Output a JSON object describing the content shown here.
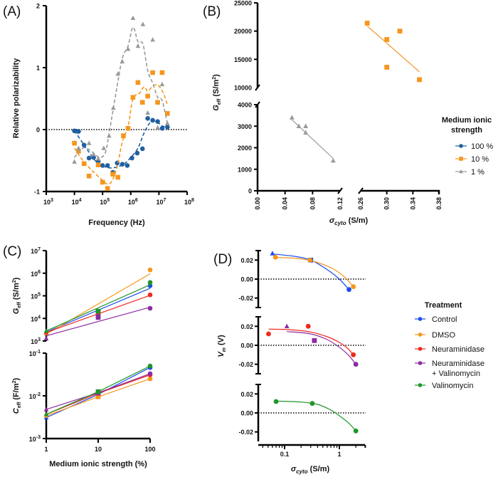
{
  "chart_data": [
    {
      "id": "A",
      "panel_label": "(A)",
      "type": "scatter",
      "title": "",
      "xlabel": "Frequency (Hz)",
      "ylabel": "Relative polarizability",
      "xscale": "log",
      "xlim": [
        1000,
        100000000
      ],
      "ylim": [
        -1,
        2
      ],
      "xticks": [
        "10^3",
        "10^4",
        "10^5",
        "10^6",
        "10^7",
        "10^8"
      ],
      "yticks": [
        "-1",
        "0",
        "1",
        "2"
      ],
      "reference_line": {
        "y": 0,
        "style": "dotted"
      },
      "series": [
        {
          "name": "100 %",
          "color": "#1f5fa0",
          "marker": "circle",
          "x": [
            10000,
            14000,
            22000,
            33000,
            48000,
            70000,
            100000,
            150000,
            230000,
            330000,
            500000,
            750000,
            1100000,
            1700000,
            2600000,
            4000000,
            6000000,
            9000000,
            13000000,
            20000000
          ],
          "y": [
            -0.02,
            -0.03,
            -0.25,
            -0.46,
            -0.45,
            -0.52,
            -0.58,
            -0.58,
            -0.69,
            -0.54,
            -0.56,
            -0.58,
            -0.46,
            -0.38,
            -0.31,
            0.18,
            0.15,
            0.13,
            0.02,
            0.04
          ],
          "fit_x": [
            10000,
            20000,
            40000,
            70000,
            120000,
            200000,
            350000,
            600000,
            1000000,
            1800000,
            3000000,
            5000000,
            8000000,
            13000000,
            20000000
          ],
          "fit_y": [
            -0.02,
            -0.22,
            -0.42,
            -0.55,
            -0.6,
            -0.62,
            -0.6,
            -0.55,
            -0.45,
            -0.3,
            -0.05,
            0.12,
            0.13,
            0.06,
            0.04
          ]
        },
        {
          "name": "10 %",
          "color": "#f5961e",
          "marker": "square",
          "x": [
            10000,
            14000,
            22000,
            33000,
            70000,
            100000,
            150000,
            230000,
            350000,
            550000,
            800000,
            1200000,
            1800000,
            2600000,
            4000000,
            6000000,
            9000000,
            13000000,
            20000000
          ],
          "y": [
            -0.22,
            -0.35,
            -0.55,
            -0.75,
            -0.57,
            -0.85,
            -0.95,
            -0.72,
            -0.77,
            -0.1,
            0.02,
            0.52,
            0.76,
            0.44,
            0.54,
            0.92,
            0.44,
            0.92,
            0.26
          ],
          "fit_x": [
            10000,
            20000,
            40000,
            80000,
            150000,
            220000,
            330000,
            500000,
            800000,
            1200000,
            2000000,
            3000000,
            4000000,
            6000000,
            9000000,
            14000000,
            20000000
          ],
          "fit_y": [
            -0.3,
            -0.5,
            -0.65,
            -0.78,
            -0.88,
            -0.82,
            -0.6,
            -0.2,
            0.05,
            0.5,
            0.58,
            0.69,
            0.62,
            0.7,
            0.72,
            0.6,
            0.4
          ]
        },
        {
          "name": "1 %",
          "color": "#999999",
          "marker": "triangle",
          "x": [
            10000,
            14000,
            33000,
            48000,
            70000,
            110000,
            170000,
            240000,
            350000,
            500000,
            800000,
            1200000,
            1800000,
            2700000,
            4000000,
            6000000,
            9000000,
            13000000,
            20000000
          ],
          "y": [
            -0.52,
            -0.3,
            -0.22,
            -0.4,
            -0.47,
            -0.3,
            -0.1,
            0.35,
            0.9,
            1.1,
            1.3,
            1.8,
            1.35,
            1.7,
            0.27,
            1.45,
            0.03,
            0.73,
            0.1
          ],
          "fit_x": [
            10000,
            20000,
            35000,
            60000,
            90000,
            130000,
            180000,
            300000,
            500000,
            800000,
            1200000,
            1800000,
            2700000,
            4000000,
            6000000,
            9000000,
            13000000,
            20000000
          ],
          "fit_y": [
            -0.45,
            -0.3,
            -0.33,
            -0.42,
            -0.45,
            -0.35,
            0.0,
            0.6,
            1.15,
            1.35,
            1.65,
            1.42,
            1.38,
            0.95,
            0.75,
            0.52,
            0.47,
            0.1
          ]
        }
      ]
    },
    {
      "id": "B",
      "panel_label": "(B)",
      "type": "scatter",
      "title": "",
      "xlabel": "σcyto (S/m)",
      "xlabel_main": "σ",
      "xlabel_sub": "cyto",
      "xlabel_unit": " (S/m)",
      "ylabel": "Geff (S/m2)",
      "ylabel_main": "G",
      "ylabel_sub": "eff",
      "ylabel_unit": " (S/m",
      "ylabel_sup": "2",
      "ylabel_close": ")",
      "x_segments": [
        [
          0.0,
          0.12
        ],
        [
          0.26,
          0.38
        ]
      ],
      "y_segments": [
        [
          0,
          4000
        ],
        [
          10000,
          25000
        ]
      ],
      "xticks_seg1": [
        "0.00",
        "0.04",
        "0.08",
        "0.12"
      ],
      "xticks_seg2": [
        "0.26",
        "0.30",
        "0.34",
        "0.38"
      ],
      "yticks_seg1": [
        "0",
        "1000",
        "2000",
        "3000",
        "4000"
      ],
      "yticks_seg2": [
        "10000",
        "15000",
        "20000",
        "25000"
      ],
      "legend": {
        "title_line1": "Medium ionic",
        "title_line2": "strength",
        "position": "right"
      },
      "series": [
        {
          "name": "100 %",
          "color": "#1f5fa0",
          "marker": "circle",
          "x": [],
          "y": []
        },
        {
          "name": "10 %",
          "color": "#f5961e",
          "marker": "square",
          "x": [
            0.27,
            0.3,
            0.32,
            0.3,
            0.35
          ],
          "y": [
            21400,
            18500,
            20000,
            13600,
            11400
          ],
          "fit": {
            "x": [
              0.27,
              0.35
            ],
            "y": [
              20900,
              12800
            ]
          }
        },
        {
          "name": "1 %",
          "color": "#999999",
          "marker": "triangle",
          "x": [
            0.05,
            0.06,
            0.07,
            0.07,
            0.11
          ],
          "y": [
            3400,
            3000,
            3000,
            2700,
            1400
          ],
          "fit": {
            "x": [
              0.05,
              0.11
            ],
            "y": [
              3300,
              1500
            ]
          }
        }
      ]
    },
    {
      "id": "C",
      "panel_label": "(C)",
      "type": "scatter",
      "title": "",
      "xlabel": "Medium ionic strength (%)",
      "xscale": "log",
      "xticks": [
        "1",
        "10",
        "100"
      ],
      "x": [
        1,
        10,
        100
      ],
      "subplots": [
        {
          "id": "C-top",
          "ylabel_main": "G",
          "ylabel_sub": "eff",
          "ylabel_unit": " (S/m",
          "ylabel_sup": "2",
          "ylabel_close": ")",
          "yscale": "log",
          "ylim": [
            1000,
            10000000
          ],
          "yticks": [
            {
              "base": "10",
              "exp": "3"
            },
            {
              "base": "10",
              "exp": "4"
            },
            {
              "base": "10",
              "exp": "5"
            },
            {
              "base": "10",
              "exp": "6"
            },
            {
              "base": "10",
              "exp": "7"
            }
          ],
          "series": [
            {
              "name": "Control",
              "color": "#1a4cf0",
              "y": [
                2700,
                13000,
                280000
              ],
              "fit_y": [
                2500,
                21000,
                215000
              ]
            },
            {
              "name": "DMSO",
              "color": "#f5961e",
              "y": [
                2200,
                20000,
                1400000
              ],
              "fit_y": [
                2000,
                40000,
                950000
              ]
            },
            {
              "name": "Neuraminidase",
              "color": "#f0281e",
              "y": [
                2400,
                19000,
                110000
              ],
              "fit_y": [
                2400,
                16000,
                105000
              ]
            },
            {
              "name": "Neuraminidase + Valinomycin",
              "color": "#8c2ba0",
              "y": [
                1300,
                11000,
                28000
              ],
              "fit_y": [
                1700,
                7500,
                31000
              ]
            },
            {
              "name": "Valinomycin",
              "color": "#1e9628",
              "y": [
                2800,
                21000,
                390000
              ],
              "fit_y": [
                2800,
                28000,
                310000
              ]
            }
          ]
        },
        {
          "id": "C-bottom",
          "ylabel_main": "C",
          "ylabel_sub": "eff",
          "ylabel_unit": " (F/m",
          "ylabel_sup": "2",
          "ylabel_close": ")",
          "yscale": "log",
          "ylim": [
            0.001,
            0.1
          ],
          "yticks": [
            {
              "base": "10",
              "exp": "-3"
            },
            {
              "base": "10",
              "exp": "-2"
            },
            {
              "base": "10",
              "exp": "-1"
            }
          ],
          "series": [
            {
              "name": "Control",
              "color": "#1a4cf0",
              "y": [
                0.0031,
                0.0108,
                0.046
              ]
            },
            {
              "name": "DMSO",
              "color": "#f5961e",
              "y": [
                0.0034,
                0.0095,
                0.025
              ]
            },
            {
              "name": "Neuraminidase",
              "color": "#f0281e",
              "y": [
                0.0037,
                0.0115,
                0.031
              ]
            },
            {
              "name": "Neuraminidase + Valinomycin",
              "color": "#8c2ba0",
              "y": [
                0.0048,
                0.0118,
                0.033
              ]
            },
            {
              "name": "Valinomycin",
              "color": "#1e9628",
              "y": [
                0.0037,
                0.0125,
                0.05
              ]
            }
          ]
        }
      ]
    },
    {
      "id": "D",
      "panel_label": "(D)",
      "type": "scatter",
      "title": "",
      "xlabel_main": "σ",
      "xlabel_sub": "cyto",
      "xlabel_unit": " (S/m)",
      "ylabel_main": "V",
      "ylabel_sub": "m",
      "ylabel_unit": " (V)",
      "xscale": "log",
      "xlim": [
        0.033,
        3
      ],
      "xticks": [
        "0.1",
        "1"
      ],
      "legend": {
        "title": "Treatment",
        "position": "right"
      },
      "subplots": [
        {
          "id": "D-1",
          "ylim": [
            -0.03,
            0.03
          ],
          "yticks": [
            "-0.02",
            "0.00",
            "0.02"
          ],
          "series": [
            {
              "name": "Control",
              "color": "#1a4cf0",
              "points": [
                {
                  "x": 0.06,
                  "y": 0.027,
                  "m": "triangle"
                },
                {
                  "x": 0.3,
                  "y": 0.02,
                  "m": "square"
                },
                {
                  "x": 1.5,
                  "y": -0.011,
                  "m": "circle"
                }
              ],
              "fit_x": [
                0.06,
                0.15,
                0.3,
                0.6,
                1.0,
                1.5
              ],
              "fit_y": [
                0.0265,
                0.024,
                0.02,
                0.01,
                0.0,
                -0.011
              ]
            },
            {
              "name": "DMSO",
              "color": "#f5961e",
              "points": [
                {
                  "x": 0.068,
                  "y": 0.023,
                  "m": "circle"
                },
                {
                  "x": 0.29,
                  "y": 0.02,
                  "m": "circle"
                },
                {
                  "x": 1.8,
                  "y": -0.008,
                  "m": "circle"
                }
              ],
              "fit_x": [
                0.068,
                0.15,
                0.3,
                0.7,
                1.2,
                1.8
              ],
              "fit_y": [
                0.0228,
                0.022,
                0.0195,
                0.012,
                0.003,
                -0.008
              ]
            }
          ]
        },
        {
          "id": "D-2",
          "ylim": [
            -0.03,
            0.03
          ],
          "yticks": [
            "-0.02",
            "0.00",
            "0.02"
          ],
          "series": [
            {
              "name": "Neuraminidase",
              "color": "#f0281e",
              "points": [
                {
                  "x": 0.051,
                  "y": 0.012,
                  "m": "circle"
                },
                {
                  "x": 0.27,
                  "y": 0.02,
                  "m": "circle"
                },
                {
                  "x": 1.8,
                  "y": -0.01,
                  "m": "circle"
                }
              ],
              "fit_x": [
                0.051,
                0.12,
                0.3,
                0.6,
                1.0,
                1.4,
                1.8
              ],
              "fit_y": [
                0.017,
                0.0165,
                0.014,
                0.009,
                0.003,
                -0.003,
                -0.01
              ]
            },
            {
              "name": "Neuraminidase + Valinomycin",
              "color": "#8c2ba0",
              "points": [
                {
                  "x": 0.11,
                  "y": 0.02,
                  "m": "triangle"
                },
                {
                  "x": 0.35,
                  "y": 0.005,
                  "m": "square"
                },
                {
                  "x": 2.0,
                  "y": -0.02,
                  "m": "circle"
                }
              ],
              "fit_x": [
                0.11,
                0.3,
                0.6,
                1.0,
                1.5,
                2.0
              ],
              "fit_y": [
                0.0145,
                0.012,
                0.006,
                -0.002,
                -0.011,
                -0.02
              ]
            }
          ]
        },
        {
          "id": "D-3",
          "ylim": [
            -0.03,
            0.03
          ],
          "yticks": [
            "-0.02",
            "0.00",
            "0.02"
          ],
          "series": [
            {
              "name": "Valinomycin",
              "color": "#1e9628",
              "points": [
                {
                  "x": 0.07,
                  "y": 0.012,
                  "m": "circle"
                },
                {
                  "x": 0.32,
                  "y": 0.01,
                  "m": "circle"
                },
                {
                  "x": 2.0,
                  "y": -0.019,
                  "m": "circle"
                }
              ],
              "fit_x": [
                0.07,
                0.2,
                0.4,
                0.7,
                1.0,
                1.5,
                2.0
              ],
              "fit_y": [
                0.0125,
                0.0115,
                0.009,
                0.003,
                -0.003,
                -0.011,
                -0.019
              ]
            }
          ]
        }
      ]
    }
  ],
  "legendB": {
    "title_line1": "Medium ionic",
    "title_line2": "strength",
    "items": [
      {
        "label": "100 %",
        "color": "#1f5fa0",
        "marker": "circle"
      },
      {
        "label": "10 %",
        "color": "#f5961e",
        "marker": "square"
      },
      {
        "label": "1 %",
        "color": "#999999",
        "marker": "triangle"
      }
    ]
  },
  "legendD": {
    "title": "Treatment",
    "items": [
      {
        "label": "Control",
        "color": "#1a4cf0"
      },
      {
        "label": "DMSO",
        "color": "#f5961e"
      },
      {
        "label": "Neuraminidase",
        "color": "#f0281e"
      },
      {
        "label": "Neuraminidase",
        "label2": "+ Valinomycin",
        "color": "#8c2ba0"
      },
      {
        "label": "Valinomycin",
        "color": "#1e9628"
      }
    ]
  },
  "labels": {
    "A": "(A)",
    "B": "(B)",
    "C": "(C)",
    "D": "(D)",
    "A_xlabel": "Frequency (Hz)",
    "A_ylabel": "Relative polarizability",
    "C_xlabel": "Medium ionic strength (%)"
  }
}
